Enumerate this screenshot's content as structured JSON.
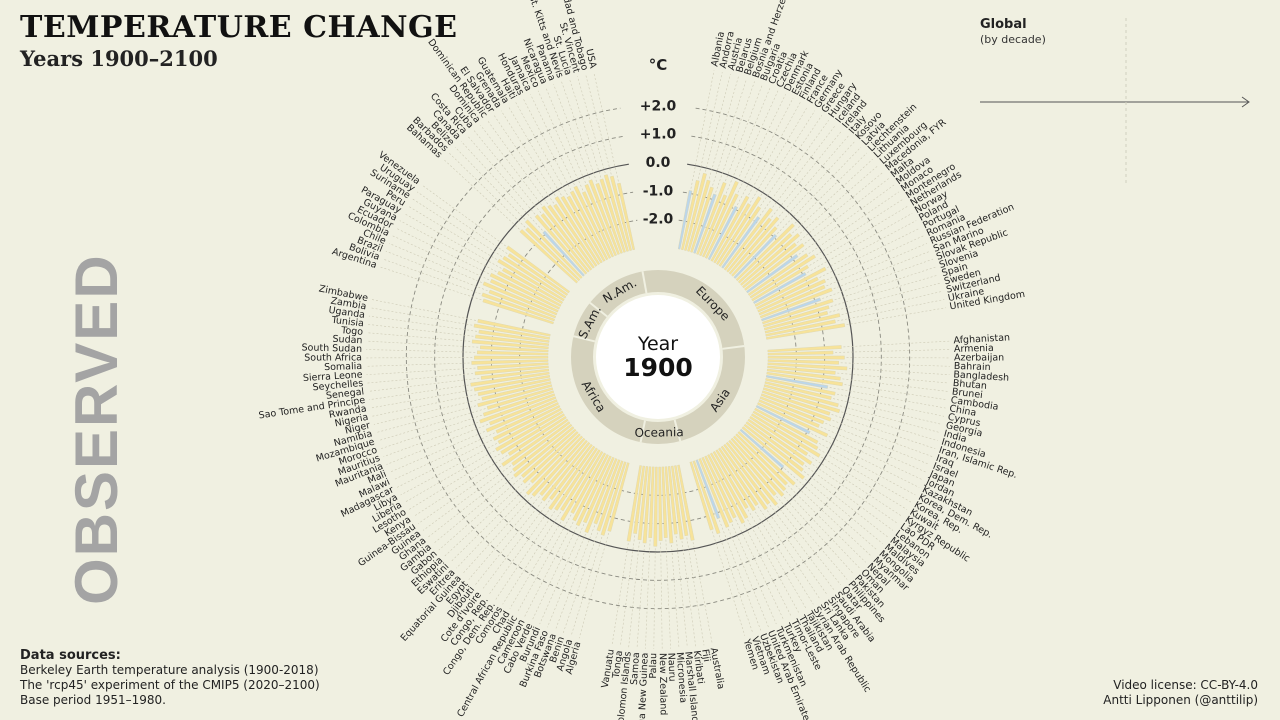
{
  "header": {
    "title": "TEMPERATURE CHANGE",
    "subtitle": "Years 1900–2100"
  },
  "side_label": "OBSERVED",
  "sources": {
    "heading": "Data sources:",
    "lines": [
      "Berkeley Earth temperature analysis (1900-2018)",
      "The 'rcp45' experiment of the CMIP5 (2020–2100)",
      "Base period 1951–1980."
    ]
  },
  "license": {
    "line1": "Video license: CC-BY-4.0",
    "line2": "Antti Lipponen (@anttilip)"
  },
  "global_panel": {
    "title": "Global",
    "subtitle": "(by decade)"
  },
  "center": {
    "label": "Year",
    "year": "1900"
  },
  "chart_data": {
    "type": "radial-bar",
    "unit": "°C",
    "radial_ticks": [
      "+2.0",
      "+1.0",
      "0.0",
      "-1.0",
      "-2.0"
    ],
    "radial_tick_values": [
      2,
      1,
      0,
      -1,
      -2
    ],
    "rlim": [
      -3,
      3
    ],
    "regions": [
      "Europe",
      "Asia",
      "Oceania",
      "Africa",
      "S.Am.",
      "N.Am."
    ],
    "colors": {
      "warm": "#f7e39a",
      "cold": "#bcd6ea",
      "neutral": "#dedbc6",
      "grid": "#8a8a80",
      "text": "#1a1a1a"
    },
    "groups": [
      {
        "region": "Europe",
        "countries": [
          "Albania",
          "Andorra",
          "Austria",
          "Belarus",
          "Belgium",
          "Bosnia and Herzegovina",
          "Bulgaria",
          "Croatia",
          "Czechia",
          "Denmark",
          "Estonia",
          "Finland",
          "France",
          "Germany",
          "Greece",
          "Hungary",
          "Iceland",
          "Ireland",
          "Italy",
          "Kosovo",
          "Latvia",
          "Liechtenstein",
          "Lithuania",
          "Luxembourg",
          "Macedonia, FYR",
          "Malta",
          "Moldova",
          "Monaco",
          "Montenegro",
          "Netherlands",
          "Norway",
          "Poland",
          "Portugal",
          "Romania",
          "Russian Federation",
          "San Marino",
          "Slovak Republic",
          "Slovenia",
          "Spain",
          "Sweden",
          "Switzerland",
          "Ukraine",
          "United Kingdom"
        ],
        "values": [
          -0.9,
          -0.5,
          -0.2,
          -0.4,
          -0.6,
          -0.8,
          -0.3,
          -0.7,
          -0.1,
          -0.5,
          -0.9,
          -0.4,
          -0.6,
          -0.2,
          -0.5,
          -0.8,
          -0.3,
          -0.6,
          -0.4,
          -0.7,
          -0.9,
          -0.2,
          -0.5,
          -0.3,
          -0.6,
          -0.4,
          -0.8,
          -0.5,
          -0.3,
          -0.7,
          -0.9,
          -0.2,
          -0.6,
          -0.4,
          -0.5,
          -0.3,
          -0.8,
          -0.4,
          -0.6,
          -0.7,
          -0.3,
          -0.5,
          -0.2
        ]
      },
      {
        "region": "Asia",
        "countries": [
          "Afghanistan",
          "Armenia",
          "Azerbaijan",
          "Bahrain",
          "Bangladesh",
          "Bhutan",
          "Brunei",
          "Cambodia",
          "China",
          "Cyprus",
          "Georgia",
          "India",
          "Indonesia",
          "Iran, Islamic Rep.",
          "Iraq",
          "Israel",
          "Japan",
          "Jordan",
          "Kazakhstan",
          "Korea, Dem. Rep.",
          "Korea, Rep.",
          "Kuwait",
          "Kyrgyz Republic",
          "Lao PDR",
          "Lebanon",
          "Malaysia",
          "Maldives",
          "Mongolia",
          "Myanmar",
          "Nepal",
          "Oman",
          "Pakistan",
          "Philippines",
          "Qatar",
          "Saudi Arabia",
          "Singapore",
          "Sri Lanka",
          "Syrian Arab Republic",
          "Tajikistan",
          "Thailand",
          "Timor-Leste",
          "Turkey",
          "Turkmenistan",
          "United Arab Emirates",
          "Uzbekistan",
          "Vietnam",
          "Yemen"
        ],
        "values": [
          -0.4,
          -0.7,
          -0.3,
          -0.5,
          -0.2,
          -0.6,
          -0.4,
          -0.3,
          -0.8,
          -0.5,
          -0.6,
          -0.3,
          -0.2,
          -0.5,
          -0.4,
          -0.6,
          -0.7,
          -0.3,
          -0.9,
          -0.5,
          -0.4,
          -0.2,
          -0.6,
          -0.3,
          -0.5,
          -0.4,
          -0.2,
          -1.0,
          -0.3,
          -0.5,
          -0.4,
          -0.3,
          -0.5,
          -0.2,
          -0.4,
          -0.3,
          -0.6,
          -0.5,
          -0.7,
          -0.4,
          -0.3,
          -0.6,
          -0.5,
          -0.4,
          -0.8,
          -0.3,
          -0.5
        ]
      },
      {
        "region": "Oceania",
        "countries": [
          "Australia",
          "Fiji",
          "Kiribati",
          "Marshall Islands",
          "Micronesia",
          "Nauru",
          "New Zealand",
          "Palau",
          "Papua New Guinea",
          "Samoa",
          "Solomon Islands",
          "Tonga",
          "Vanuatu"
        ],
        "values": [
          -0.3,
          -0.5,
          -0.4,
          -0.6,
          -0.3,
          -0.5,
          -0.4,
          -0.2,
          -0.5,
          -0.3,
          -0.4,
          -0.6,
          -0.3
        ]
      },
      {
        "region": "Africa",
        "countries": [
          "Algeria",
          "Angola",
          "Benin",
          "Botswana",
          "Burkina Faso",
          "Burundi",
          "Cabo Verde",
          "Cameroon",
          "Central African Republic",
          "Chad",
          "Comoros",
          "Congo, Dem. Rep.",
          "Congo, Rep.",
          "Cote d'Ivoire",
          "Djibouti",
          "Egypt",
          "Equatorial Guinea",
          "Eritrea",
          "Eswatini",
          "Ethiopia",
          "Gabon",
          "Gambia",
          "Ghana",
          "Guinea",
          "Guinea-Bissau",
          "Kenya",
          "Lesotho",
          "Liberia",
          "Libya",
          "Madagascar",
          "Malawi",
          "Mali",
          "Mauritania",
          "Mauritius",
          "Morocco",
          "Mozambique",
          "Namibia",
          "Niger",
          "Nigeria",
          "Rwanda",
          "Sao Tome and Principe",
          "Senegal",
          "Seychelles",
          "Sierra Leone",
          "Somalia",
          "South Africa",
          "South Sudan",
          "Sudan",
          "Togo",
          "Tunisia",
          "Uganda",
          "Zambia",
          "Zimbabwe"
        ],
        "values": [
          -0.5,
          -0.3,
          -0.4,
          -0.6,
          -0.2,
          -0.5,
          -0.3,
          -0.4,
          -0.6,
          -0.2,
          -0.5,
          -0.4,
          -0.3,
          -0.6,
          -0.4,
          -0.5,
          -0.3,
          -0.2,
          -0.6,
          -0.4,
          -0.5,
          -0.3,
          -0.4,
          -0.5,
          -0.2,
          -0.6,
          -0.4,
          -0.3,
          -0.5,
          -0.4,
          -0.6,
          -0.3,
          -0.5,
          -0.2,
          -0.4,
          -0.6,
          -0.3,
          -0.5,
          -0.4,
          -0.3,
          -0.2,
          -0.6,
          -0.4,
          -0.5,
          -0.3,
          -0.4,
          -0.5,
          -0.6,
          -0.3,
          -0.4,
          -0.5,
          -0.3,
          -0.4
        ]
      },
      {
        "region": "S.Am.",
        "countries": [
          "Argentina",
          "Bolivia",
          "Brazil",
          "Chile",
          "Colombia",
          "Ecuador",
          "Guyana",
          "Paraguay",
          "Peru",
          "Suriname",
          "Uruguay",
          "Venezuela"
        ],
        "values": [
          -0.4,
          -0.3,
          -0.5,
          -0.2,
          -0.4,
          -0.3,
          -0.5,
          -0.6,
          -0.3,
          -0.4,
          -0.5,
          -0.3
        ]
      },
      {
        "region": "N.Am.",
        "countries": [
          "Bahamas",
          "Barbados",
          "Belize",
          "Canada",
          "Costa Rica",
          "Cuba",
          "Dominica",
          "Dominican Republic",
          "El Salvador",
          "Grenada",
          "Guatemala",
          "Haiti",
          "Honduras",
          "Jamaica",
          "Mexico",
          "Nicaragua",
          "Panama",
          "St. Kitts and Nevis",
          "St. Lucia",
          "St. Vincent",
          "Trinidad and Tobago",
          "USA"
        ],
        "values": [
          -0.3,
          -0.4,
          -0.2,
          -0.9,
          -0.3,
          -0.4,
          -0.2,
          -0.3,
          -0.4,
          -0.2,
          -0.3,
          -0.4,
          -0.3,
          -0.2,
          -0.5,
          -0.3,
          -0.2,
          -0.4,
          -0.3,
          -0.2,
          -0.3,
          -0.6
        ]
      }
    ]
  }
}
